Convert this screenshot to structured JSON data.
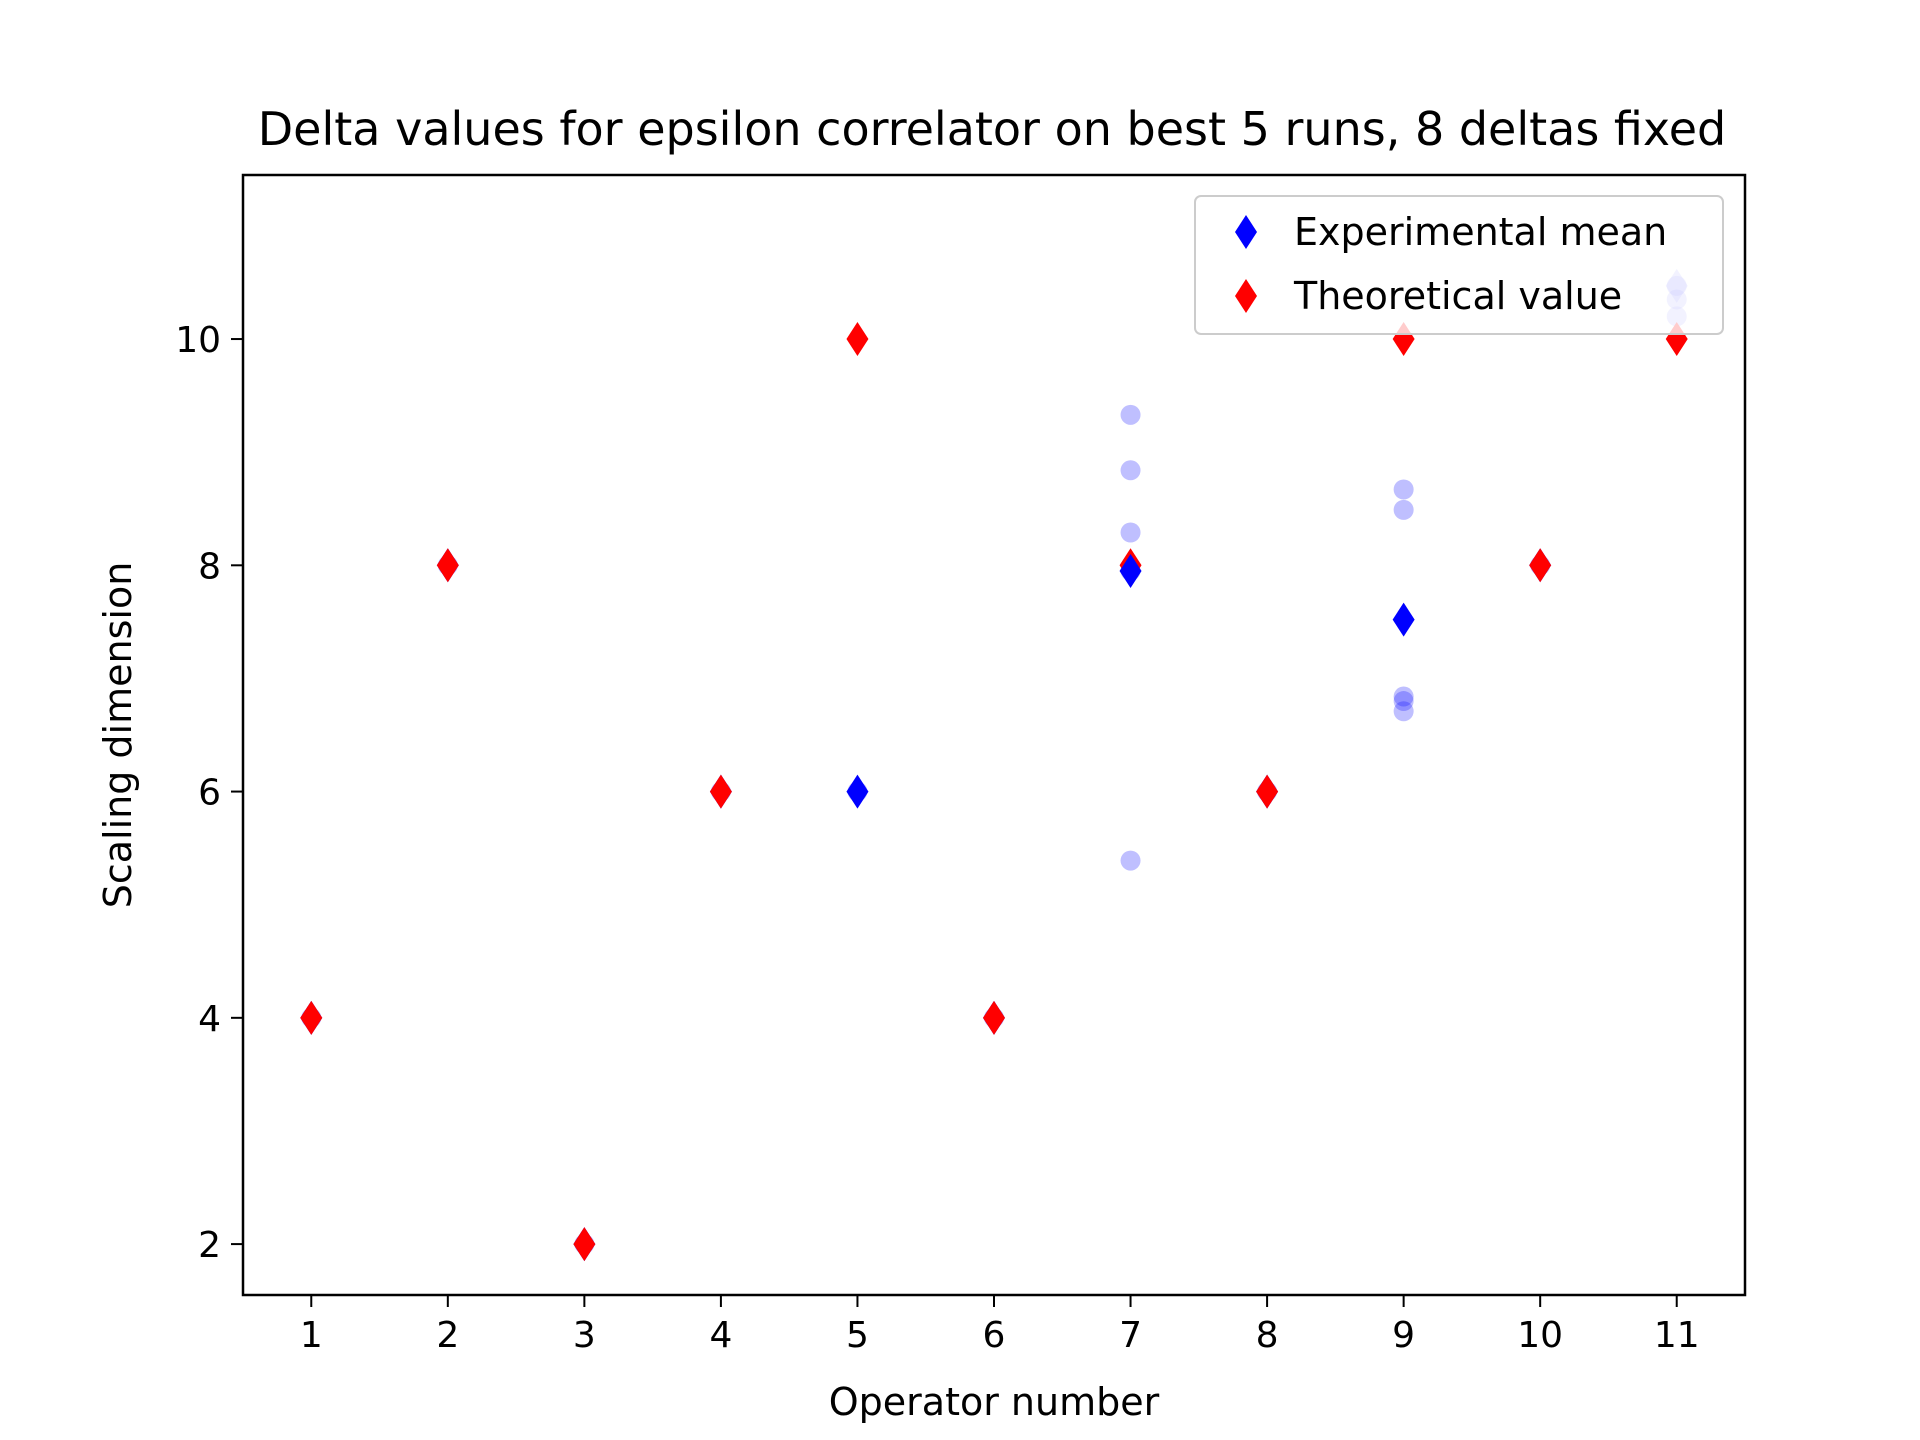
{
  "chart_data": {
    "type": "scatter",
    "title": "Delta values for epsilon correlator on best 5 runs, 8 deltas fixed",
    "xlabel": "Operator number",
    "ylabel": "Scaling dimension",
    "xlim": [
      0.5,
      11.5
    ],
    "ylim": [
      1.55,
      11.45
    ],
    "xticks": [
      1,
      2,
      3,
      4,
      5,
      6,
      7,
      8,
      9,
      10,
      11
    ],
    "yticks": [
      2,
      4,
      6,
      8,
      10
    ],
    "grid": false,
    "legend_position": "upper right",
    "colors": {
      "experimental": "#0000ff",
      "theoretical": "#ff0000",
      "runs": "#b4b4f0"
    },
    "legend": [
      {
        "label": "Experimental mean",
        "series": "experimental"
      },
      {
        "label": "Theoretical value",
        "series": "theoretical"
      }
    ],
    "series": [
      {
        "name": "Experimental mean",
        "key": "experimental",
        "marker": "diamond",
        "points": [
          {
            "x": 1,
            "y": 4.0
          },
          {
            "x": 2,
            "y": 8.0
          },
          {
            "x": 3,
            "y": 2.0
          },
          {
            "x": 4,
            "y": 6.0
          },
          {
            "x": 5,
            "y": 6.0
          },
          {
            "x": 6,
            "y": 4.0
          },
          {
            "x": 7,
            "y": 7.95
          },
          {
            "x": 8,
            "y": 6.0
          },
          {
            "x": 9,
            "y": 7.52
          },
          {
            "x": 10,
            "y": 8.0
          },
          {
            "x": 11,
            "y": 10.47
          }
        ]
      },
      {
        "name": "Theoretical value",
        "key": "theoretical",
        "marker": "diamond",
        "points": [
          {
            "x": 1,
            "y": 4
          },
          {
            "x": 2,
            "y": 8
          },
          {
            "x": 3,
            "y": 2
          },
          {
            "x": 4,
            "y": 6
          },
          {
            "x": 5,
            "y": 10
          },
          {
            "x": 6,
            "y": 4
          },
          {
            "x": 7,
            "y": 8
          },
          {
            "x": 8,
            "y": 6
          },
          {
            "x": 9,
            "y": 10
          },
          {
            "x": 10,
            "y": 8
          },
          {
            "x": 11,
            "y": 10
          }
        ]
      },
      {
        "key": "runs",
        "marker": "circle",
        "points": [
          {
            "x": 1,
            "y": 4.0
          },
          {
            "x": 2,
            "y": 8.0
          },
          {
            "x": 3,
            "y": 2.0
          },
          {
            "x": 4,
            "y": 6.0
          },
          {
            "x": 5,
            "y": 6.0
          },
          {
            "x": 6,
            "y": 4.0
          },
          {
            "x": 7,
            "y": 9.33
          },
          {
            "x": 7,
            "y": 8.84
          },
          {
            "x": 7,
            "y": 8.29
          },
          {
            "x": 7,
            "y": 7.95
          },
          {
            "x": 7,
            "y": 5.39
          },
          {
            "x": 8,
            "y": 6.0
          },
          {
            "x": 9,
            "y": 8.67
          },
          {
            "x": 9,
            "y": 8.49
          },
          {
            "x": 9,
            "y": 6.84
          },
          {
            "x": 9,
            "y": 6.8
          },
          {
            "x": 9,
            "y": 6.71
          },
          {
            "x": 10,
            "y": 8.0
          },
          {
            "x": 11,
            "y": 10.47
          },
          {
            "x": 11,
            "y": 10.35
          },
          {
            "x": 11,
            "y": 10.2
          }
        ]
      }
    ]
  }
}
